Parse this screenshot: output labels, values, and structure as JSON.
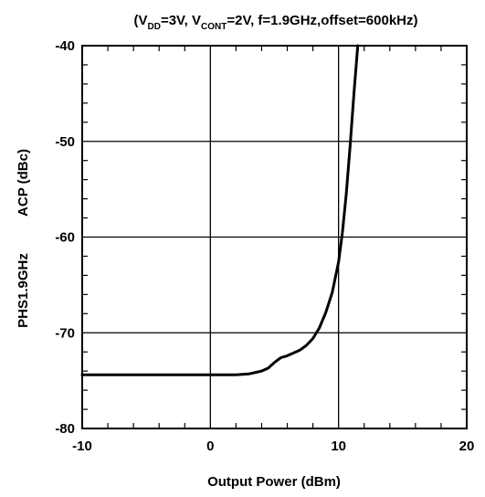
{
  "chart_data": {
    "type": "line",
    "title": {
      "open": "(V",
      "sub1": "DD",
      "mid1": "=3V, V",
      "sub2": "CONT",
      "rest": "=2V, f=1.9GHz,offset=600kHz)"
    },
    "xlabel": "Output Power (dBm)",
    "ylabel_parts": [
      "PHS1.9GHz",
      "ACP (dBc)"
    ],
    "xlim": [
      -10,
      20
    ],
    "ylim": [
      -80,
      -40
    ],
    "x_ticks": [
      -10,
      0,
      10,
      20
    ],
    "y_ticks": [
      -80,
      -70,
      -60,
      -50,
      -40
    ],
    "x_tick_labels": [
      "-10",
      "0",
      "10",
      "20"
    ],
    "y_tick_labels": [
      "-80",
      "-70",
      "-60",
      "-50",
      "-40"
    ],
    "grid": true,
    "series": [
      {
        "color": "#000000",
        "x": [
          -10,
          -8,
          -6,
          -4,
          -2,
          0,
          2,
          3,
          4,
          4.5,
          5,
          5.5,
          6,
          7,
          7.5,
          8,
          8.5,
          9,
          9.5,
          10,
          10.3,
          10.6,
          10.9,
          11.2,
          11.5
        ],
        "y": [
          -74.4,
          -74.4,
          -74.4,
          -74.4,
          -74.4,
          -74.4,
          -74.4,
          -74.3,
          -74.0,
          -73.7,
          -73.1,
          -72.6,
          -72.4,
          -71.8,
          -71.3,
          -70.6,
          -69.5,
          -67.9,
          -65.8,
          -62.6,
          -59.5,
          -55.5,
          -50.5,
          -45,
          -40
        ]
      }
    ]
  }
}
